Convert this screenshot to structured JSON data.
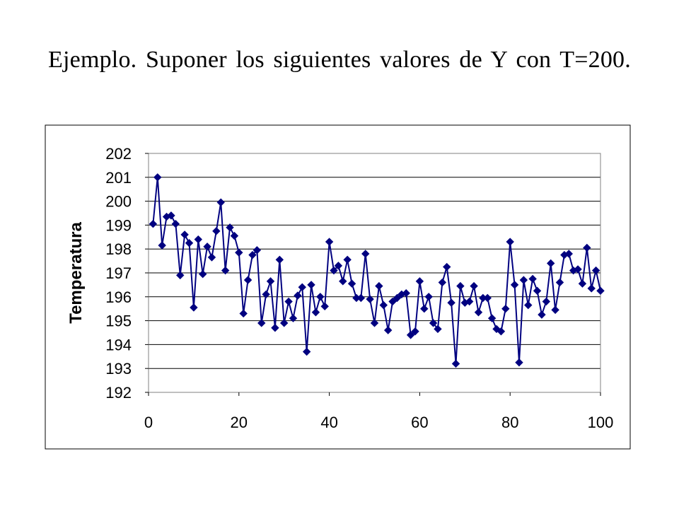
{
  "slide": {
    "title": "Ejemplo.  Suponer los siguientes valores de Y con T=200."
  },
  "chart_data": {
    "type": "line",
    "title": "",
    "xlabel": "",
    "ylabel": "Temperatura",
    "xlim": [
      0,
      100
    ],
    "ylim": [
      192,
      202
    ],
    "x_ticks": [
      "0",
      "20",
      "40",
      "60",
      "80",
      "100"
    ],
    "y_ticks": [
      "192",
      "193",
      "194",
      "195",
      "196",
      "197",
      "198",
      "199",
      "200",
      "201",
      "202"
    ],
    "grid": "horizontal",
    "legend": "none",
    "marker": "diamond",
    "colors": {
      "series": "#000080",
      "grid": "#000000",
      "frame": "#000000"
    },
    "series": [
      {
        "x": [
          1,
          2,
          3,
          4,
          5,
          6,
          7,
          8,
          9,
          10,
          11,
          12,
          13,
          14,
          15,
          16,
          17,
          18,
          19,
          20,
          21,
          22,
          23,
          24,
          25,
          26,
          27,
          28,
          29,
          30,
          31,
          32,
          33,
          34,
          35,
          36,
          37,
          38,
          39,
          40,
          41,
          42,
          43,
          44,
          45,
          46,
          47,
          48,
          49,
          50,
          51,
          52,
          53,
          54,
          55,
          56,
          57,
          58,
          59,
          60,
          61,
          62,
          63,
          64,
          65,
          66,
          67,
          68,
          69,
          70,
          71,
          72,
          73,
          74,
          75,
          76,
          77,
          78,
          79,
          80,
          81,
          82,
          83,
          84,
          85,
          86,
          87,
          88,
          89,
          90,
          91,
          92,
          93,
          94,
          95,
          96,
          97,
          98,
          99,
          100
        ],
        "values": [
          199.05,
          201.0,
          198.15,
          199.35,
          199.4,
          199.05,
          196.9,
          198.6,
          198.25,
          195.55,
          198.4,
          196.95,
          198.1,
          197.65,
          198.75,
          199.95,
          197.1,
          198.9,
          198.55,
          197.85,
          195.3,
          196.7,
          197.75,
          197.95,
          194.9,
          196.1,
          196.65,
          194.7,
          197.55,
          194.9,
          195.8,
          195.1,
          196.05,
          196.4,
          193.7,
          196.5,
          195.35,
          196.0,
          195.6,
          198.3,
          197.1,
          197.3,
          196.65,
          197.55,
          196.55,
          195.95,
          195.95,
          197.8,
          195.9,
          194.9,
          196.45,
          195.65,
          194.6,
          195.8,
          195.95,
          196.1,
          196.15,
          194.4,
          194.55,
          196.65,
          195.5,
          196.0,
          194.9,
          194.65,
          196.6,
          197.25,
          195.75,
          193.2,
          196.45,
          195.75,
          195.8,
          196.45,
          195.35,
          195.95,
          195.95,
          195.1,
          194.65,
          194.55,
          195.5,
          198.3,
          196.5,
          193.25,
          196.7,
          195.65,
          196.75,
          196.25,
          195.25,
          195.8,
          197.4,
          195.45,
          196.6,
          197.75,
          197.8,
          197.1,
          197.15,
          196.55,
          198.05,
          196.35,
          197.1,
          196.25
        ]
      }
    ]
  }
}
